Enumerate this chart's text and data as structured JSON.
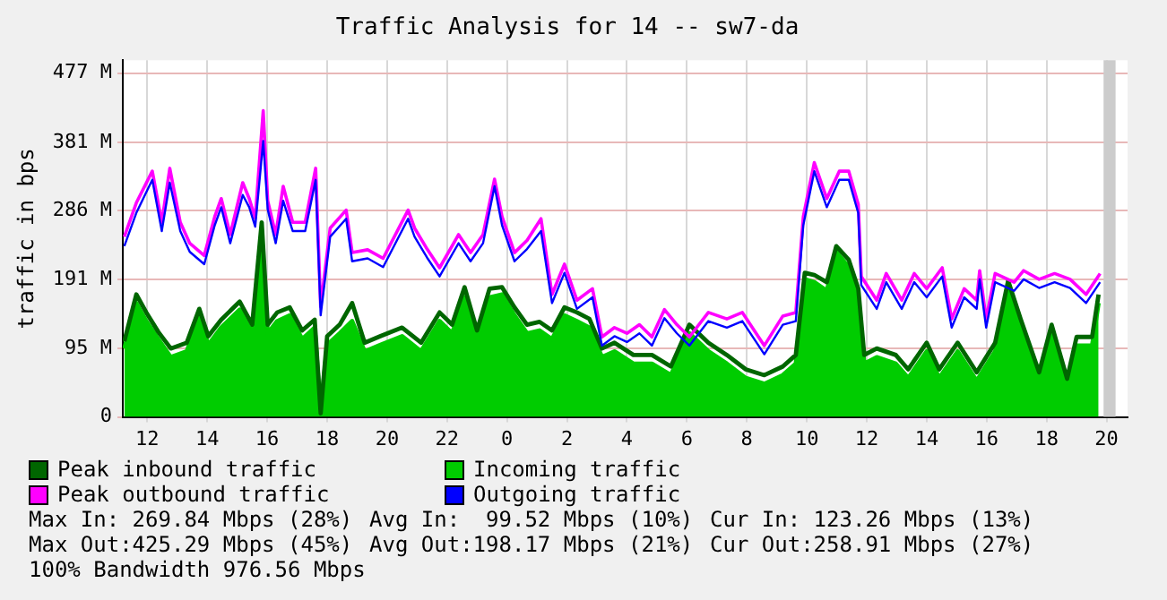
{
  "chart_data": {
    "type": "line",
    "title": "Traffic Analysis for 14 -- sw7-da",
    "ylabel": "traffic in bps",
    "xlim": [
      "--01-01T11:11",
      "--01-02T20:42"
    ],
    "xticks": [
      {
        "value": "--01-01T12:00",
        "label": "12"
      },
      {
        "value": "--01-01T14:00",
        "label": "14"
      },
      {
        "value": "--01-01T16:00",
        "label": "16"
      },
      {
        "value": "--01-01T18:00",
        "label": "18"
      },
      {
        "value": "--01-01T20:00",
        "label": "20"
      },
      {
        "value": "--01-01T22:00",
        "label": "22"
      },
      {
        "value": "--01-02T00:00",
        "label": "0"
      },
      {
        "value": "--01-02T02:00",
        "label": "2"
      },
      {
        "value": "--01-02T04:00",
        "label": "4"
      },
      {
        "value": "--01-02T06:00",
        "label": "6"
      },
      {
        "value": "--01-02T08:00",
        "label": "8"
      },
      {
        "value": "--01-02T10:00",
        "label": "10"
      },
      {
        "value": "--01-02T12:00",
        "label": "12"
      },
      {
        "value": "--01-02T14:00",
        "label": "14"
      },
      {
        "value": "--01-02T16:00",
        "label": "16"
      },
      {
        "value": "--01-02T18:00",
        "label": "18"
      },
      {
        "value": "--01-02T20:00",
        "label": "20"
      }
    ],
    "ylim": [
      0,
      495
    ],
    "yticks": [
      0,
      {
        "value": 95,
        "label": "95 M"
      },
      {
        "value": 191,
        "label": "191 M"
      },
      {
        "value": 286,
        "label": "286 M"
      },
      {
        "value": 381,
        "label": "381 M"
      },
      {
        "value": 477,
        "label": "477 M"
      }
    ],
    "grid": true,
    "legend": "bottom",
    "marker": "none",
    "bands": [
      {
        "axis": "x",
        "from": "--01-02T19:54",
        "to": "--01-02T20:18",
        "color": "#cccccc"
      }
    ],
    "series": [
      {
        "name": "Peak inbound traffic",
        "type": "line",
        "color": "#006600",
        "x": [
          "--01-01T11:14",
          "--01-01T11:38",
          "--01-01T11:58",
          "--01-01T12:22",
          "--01-01T12:47",
          "--01-01T13:19",
          "--01-01T13:44",
          "--01-01T14:02",
          "--01-01T14:28",
          "--01-01T15:05",
          "--01-01T15:30",
          "--01-01T15:49",
          "--01-01T16:01",
          "--01-01T16:20",
          "--01-01T16:45",
          "--01-01T17:10",
          "--01-01T17:35",
          "--01-01T17:47",
          "--01-01T18:00",
          "--01-01T18:25",
          "--01-01T18:50",
          "--01-01T19:15",
          "--01-01T19:46",
          "--01-01T20:30",
          "--01-01T21:08",
          "--01-01T21:45",
          "--01-01T22:10",
          "--01-01T22:35",
          "--01-01T23:00",
          "--01-01T23:25",
          "--01-01T23:50",
          "--01-02T00:15",
          "--01-02T00:40",
          "--01-02T01:05",
          "--01-02T01:30",
          "--01-02T01:55",
          "--01-02T02:20",
          "--01-02T02:45",
          "--01-02T03:10",
          "--01-02T03:35",
          "--01-02T04:13",
          "--01-02T04:50",
          "--01-02T05:28",
          "--01-02T06:05",
          "--01-02T06:43",
          "--01-02T07:20",
          "--01-02T07:58",
          "--01-02T08:35",
          "--01-02T09:12",
          "--01-02T09:38",
          "--01-02T09:56",
          "--01-02T10:15",
          "--01-02T10:40",
          "--01-02T10:59",
          "--01-02T11:24",
          "--01-02T11:43",
          "--01-02T11:55",
          "--01-02T12:20",
          "--01-02T12:58",
          "--01-02T13:23",
          "--01-02T14:00",
          "--01-02T14:25",
          "--01-02T15:02",
          "--01-02T15:40",
          "--01-02T16:17",
          "--01-02T16:43",
          "--01-02T17:08",
          "--01-02T17:45",
          "--01-02T18:10",
          "--01-02T18:41",
          "--01-02T19:00",
          "--01-02T19:31",
          "--01-02T19:44"
        ],
        "values": [
          105,
          170,
          145,
          118,
          95,
          103,
          150,
          112,
          135,
          160,
          128,
          270,
          128,
          145,
          152,
          120,
          135,
          5,
          112,
          128,
          158,
          103,
          112,
          124,
          103,
          145,
          128,
          180,
          120,
          178,
          180,
          152,
          128,
          132,
          120,
          152,
          145,
          136,
          95,
          103,
          86,
          86,
          70,
          128,
          103,
          86,
          66,
          58,
          70,
          86,
          200,
          197,
          187,
          237,
          218,
          178,
          86,
          95,
          86,
          66,
          103,
          66,
          103,
          62,
          103,
          189,
          136,
          62,
          128,
          53,
          111,
          111,
          170
        ]
      },
      {
        "name": "Incoming traffic",
        "type": "area",
        "color": "#00cc00",
        "x": [
          "--01-01T11:14",
          "--01-01T11:38",
          "--01-01T11:58",
          "--01-01T12:22",
          "--01-01T12:47",
          "--01-01T13:19",
          "--01-01T13:44",
          "--01-01T14:02",
          "--01-01T14:28",
          "--01-01T15:05",
          "--01-01T15:30",
          "--01-01T15:49",
          "--01-01T16:01",
          "--01-01T16:20",
          "--01-01T16:45",
          "--01-01T17:10",
          "--01-01T17:35",
          "--01-01T17:47",
          "--01-01T18:00",
          "--01-01T18:25",
          "--01-01T18:50",
          "--01-01T19:15",
          "--01-01T19:46",
          "--01-01T20:30",
          "--01-01T21:08",
          "--01-01T21:45",
          "--01-01T22:10",
          "--01-01T22:35",
          "--01-01T23:00",
          "--01-01T23:25",
          "--01-01T23:50",
          "--01-02T00:15",
          "--01-02T00:40",
          "--01-02T01:05",
          "--01-02T01:30",
          "--01-02T01:55",
          "--01-02T02:20",
          "--01-02T02:45",
          "--01-02T03:10",
          "--01-02T03:35",
          "--01-02T04:13",
          "--01-02T04:50",
          "--01-02T05:28",
          "--01-02T06:05",
          "--01-02T06:43",
          "--01-02T07:20",
          "--01-02T07:58",
          "--01-02T08:35",
          "--01-02T09:12",
          "--01-02T09:38",
          "--01-02T09:56",
          "--01-02T10:15",
          "--01-02T10:40",
          "--01-02T10:59",
          "--01-02T11:24",
          "--01-02T11:43",
          "--01-02T11:55",
          "--01-02T12:20",
          "--01-02T12:58",
          "--01-02T13:23",
          "--01-02T14:00",
          "--01-02T14:25",
          "--01-02T15:02",
          "--01-02T15:40",
          "--01-02T16:17",
          "--01-02T16:43",
          "--01-02T17:08",
          "--01-02T17:45",
          "--01-02T18:10",
          "--01-02T18:41",
          "--01-02T19:00",
          "--01-02T19:31",
          "--01-02T19:44"
        ],
        "values": [
          95,
          158,
          133,
          108,
          83,
          91,
          141,
          100,
          124,
          149,
          116,
          233,
          116,
          133,
          141,
          108,
          124,
          8,
          100,
          116,
          133,
          91,
          100,
          112,
          91,
          133,
          116,
          166,
          108,
          166,
          170,
          141,
          116,
          120,
          108,
          141,
          133,
          124,
          83,
          91,
          74,
          74,
          58,
          116,
          91,
          74,
          54,
          46,
          58,
          74,
          191,
          187,
          175,
          229,
          208,
          166,
          74,
          83,
          74,
          54,
          91,
          54,
          91,
          50,
          91,
          179,
          124,
          50,
          116,
          41,
          99,
          99,
          158
        ]
      },
      {
        "name": "Peak outbound traffic",
        "type": "line",
        "color": "#ff00ff",
        "x": [
          "--01-01T11:14",
          "--01-01T11:38",
          "--01-01T12:10",
          "--01-01T12:29",
          "--01-01T12:45",
          "--01-01T13:06",
          "--01-01T13:25",
          "--01-01T13:54",
          "--01-01T14:15",
          "--01-01T14:28",
          "--01-01T14:46",
          "--01-01T15:11",
          "--01-01T15:24",
          "--01-01T15:36",
          "--01-01T15:52",
          "--01-01T16:01",
          "--01-01T16:17",
          "--01-01T16:32",
          "--01-01T16:51",
          "--01-01T17:16",
          "--01-01T17:37",
          "--01-01T17:47",
          "--01-01T18:06",
          "--01-01T18:38",
          "--01-01T18:50",
          "--01-01T19:21",
          "--01-01T19:52",
          "--01-01T20:42",
          "--01-01T20:55",
          "--01-01T21:20",
          "--01-01T21:45",
          "--01-01T22:23",
          "--01-01T22:47",
          "--01-01T23:12",
          "--01-01T23:35",
          "--01-01T23:50",
          "--01-02T00:15",
          "--01-02T00:40",
          "--01-02T01:08",
          "--01-02T01:30",
          "--01-02T01:55",
          "--01-02T02:20",
          "--01-02T02:51",
          "--01-02T03:10",
          "--01-02T03:35",
          "--01-02T04:00",
          "--01-02T04:25",
          "--01-02T04:50",
          "--01-02T05:15",
          "--01-02T05:40",
          "--01-02T06:05",
          "--01-02T06:43",
          "--01-02T07:20",
          "--01-02T07:51",
          "--01-02T08:35",
          "--01-02T09:12",
          "--01-02T09:38",
          "--01-02T09:53",
          "--01-02T10:15",
          "--01-02T10:40",
          "--01-02T11:05",
          "--01-02T11:24",
          "--01-02T11:43",
          "--01-02T11:49",
          "--01-02T12:20",
          "--01-02T12:39",
          "--01-02T13:10",
          "--01-02T13:35",
          "--01-02T14:00",
          "--01-02T14:31",
          "--01-02T14:50",
          "--01-02T15:15",
          "--01-02T15:40",
          "--01-02T15:46",
          "--01-02T15:59",
          "--01-02T16:17",
          "--01-02T16:55",
          "--01-02T17:14",
          "--01-02T17:45",
          "--01-02T18:16",
          "--01-02T18:47",
          "--01-02T19:19",
          "--01-02T19:47"
        ],
        "values": [
          250,
          297,
          341,
          270,
          345,
          270,
          241,
          224,
          278,
          303,
          253,
          325,
          303,
          276,
          425,
          300,
          253,
          320,
          270,
          270,
          345,
          153,
          262,
          287,
          228,
          232,
          220,
          287,
          262,
          233,
          207,
          253,
          228,
          253,
          330,
          278,
          228,
          245,
          275,
          170,
          212,
          162,
          178,
          111,
          124,
          116,
          128,
          111,
          149,
          128,
          111,
          145,
          136,
          145,
          99,
          140,
          145,
          278,
          353,
          303,
          341,
          341,
          295,
          195,
          162,
          199,
          162,
          199,
          178,
          207,
          136,
          178,
          162,
          203,
          136,
          199,
          187,
          203,
          191,
          199,
          191,
          170,
          199
        ]
      },
      {
        "name": "Outgoing traffic",
        "type": "line",
        "color": "#0000ff",
        "x": [
          "--01-01T11:14",
          "--01-01T11:38",
          "--01-01T12:10",
          "--01-01T12:29",
          "--01-01T12:45",
          "--01-01T13:06",
          "--01-01T13:25",
          "--01-01T13:54",
          "--01-01T14:15",
          "--01-01T14:28",
          "--01-01T14:46",
          "--01-01T15:11",
          "--01-01T15:24",
          "--01-01T15:36",
          "--01-01T15:52",
          "--01-01T16:01",
          "--01-01T16:17",
          "--01-01T16:32",
          "--01-01T16:51",
          "--01-01T17:16",
          "--01-01T17:37",
          "--01-01T17:47",
          "--01-01T18:06",
          "--01-01T18:38",
          "--01-01T18:50",
          "--01-01T19:21",
          "--01-01T19:52",
          "--01-01T20:42",
          "--01-01T20:55",
          "--01-01T21:20",
          "--01-01T21:45",
          "--01-01T22:23",
          "--01-01T22:47",
          "--01-01T23:12",
          "--01-01T23:35",
          "--01-01T23:50",
          "--01-02T00:15",
          "--01-02T00:40",
          "--01-02T01:08",
          "--01-02T01:30",
          "--01-02T01:55",
          "--01-02T02:20",
          "--01-02T02:51",
          "--01-02T03:10",
          "--01-02T03:35",
          "--01-02T04:00",
          "--01-02T04:25",
          "--01-02T04:50",
          "--01-02T05:15",
          "--01-02T05:40",
          "--01-02T06:05",
          "--01-02T06:43",
          "--01-02T07:20",
          "--01-02T07:51",
          "--01-02T08:35",
          "--01-02T09:12",
          "--01-02T09:38",
          "--01-02T09:53",
          "--01-02T10:15",
          "--01-02T10:40",
          "--01-02T11:05",
          "--01-02T11:24",
          "--01-02T11:43",
          "--01-02T11:49",
          "--01-02T12:20",
          "--01-02T12:39",
          "--01-02T13:10",
          "--01-02T13:35",
          "--01-02T14:00",
          "--01-02T14:31",
          "--01-02T14:50",
          "--01-02T15:15",
          "--01-02T15:40",
          "--01-02T15:46",
          "--01-02T15:59",
          "--01-02T16:17",
          "--01-02T16:55",
          "--01-02T17:14",
          "--01-02T17:45",
          "--01-02T18:16",
          "--01-02T18:47",
          "--01-02T19:19",
          "--01-02T19:47"
        ],
        "values": [
          237,
          283,
          329,
          258,
          325,
          258,
          229,
          212,
          266,
          291,
          241,
          308,
          291,
          264,
          383,
          288,
          241,
          300,
          258,
          258,
          329,
          141,
          250,
          275,
          216,
          220,
          208,
          275,
          250,
          221,
          195,
          241,
          216,
          241,
          320,
          266,
          216,
          233,
          258,
          158,
          200,
          150,
          166,
          99,
          112,
          104,
          116,
          99,
          137,
          116,
          99,
          133,
          124,
          133,
          87,
          128,
          133,
          266,
          341,
          291,
          329,
          329,
          283,
          183,
          150,
          187,
          150,
          187,
          166,
          195,
          124,
          166,
          150,
          191,
          124,
          187,
          175,
          191,
          179,
          187,
          179,
          158,
          187
        ]
      }
    ],
    "annotations": [
      "Max In: 269.84 Mbps (28%)",
      "Avg In:  99.52 Mbps (10%)",
      "Cur In: 123.26 Mbps (13%)",
      "Max Out:425.29 Mbps (45%)",
      "Avg Out:198.17 Mbps (21%)",
      "Cur Out:258.91 Mbps (27%)",
      "100% Bandwidth 976.56 Mbps"
    ]
  }
}
